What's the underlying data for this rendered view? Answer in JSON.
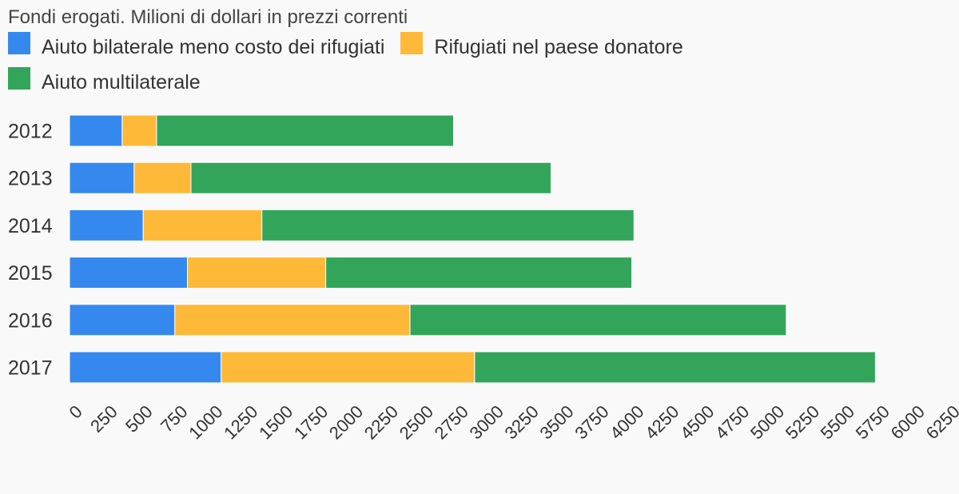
{
  "chart_data": {
    "type": "bar",
    "orientation": "horizontal",
    "stacked": true,
    "title": "Fondi erogati. Milioni di dollari in prezzi correnti",
    "categories": [
      "2012",
      "2013",
      "2014",
      "2015",
      "2016",
      "2017"
    ],
    "series": [
      {
        "name": "Aiuto bilaterale meno costo dei rifugiati",
        "color": "#3589ee",
        "values": [
          375,
          460,
          525,
          840,
          750,
          1080
        ]
      },
      {
        "name": "Rifugiati nel paese donatore",
        "color": "#ffb938",
        "values": [
          245,
          405,
          845,
          985,
          1675,
          1805
        ]
      },
      {
        "name": "Aiuto multilaterale",
        "color": "#33a55b",
        "values": [
          2115,
          2565,
          2650,
          2180,
          2680,
          2855
        ]
      }
    ],
    "xlim": [
      0,
      6250
    ],
    "xticks": [
      "0",
      "250",
      "500",
      "750",
      "1000",
      "1250",
      "1500",
      "1750",
      "2000",
      "2250",
      "2500",
      "2750",
      "3000",
      "3250",
      "3500",
      "3750",
      "4000",
      "4250",
      "4500",
      "4750",
      "5000",
      "5250",
      "5500",
      "5750",
      "6000",
      "6250"
    ],
    "legend_position": "top-left",
    "grid": false
  }
}
